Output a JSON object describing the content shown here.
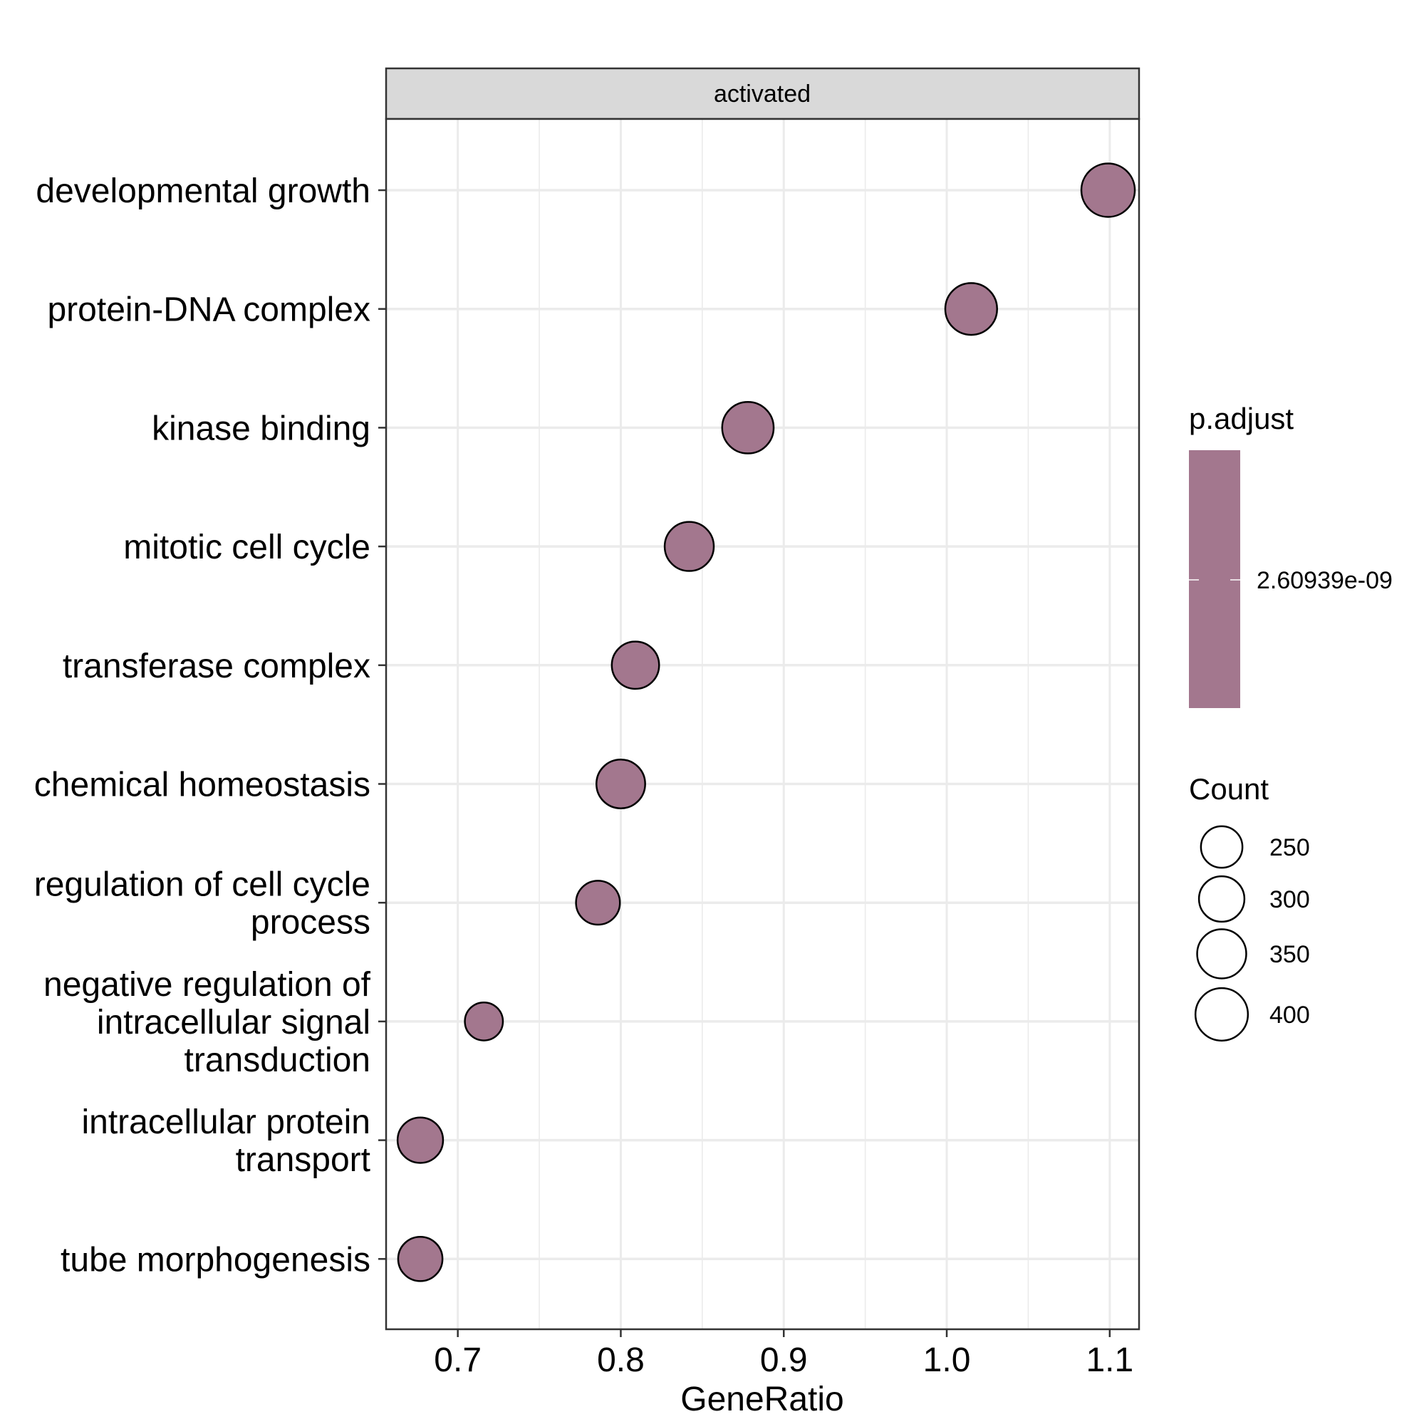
{
  "chart_data": {
    "type": "scatter",
    "facet_label": "activated",
    "xlabel": "GeneRatio",
    "ylabel": "",
    "xlim": [
      0.656,
      1.118
    ],
    "x_ticks": [
      "0.7",
      "0.8",
      "0.9",
      "1.0",
      "1.1"
    ],
    "x_tick_values": [
      0.7,
      0.8,
      0.9,
      1.0,
      1.1
    ],
    "grid": true,
    "categories": [
      [
        "developmental growth"
      ],
      [
        "protein-DNA complex"
      ],
      [
        "kinase binding"
      ],
      [
        "mitotic cell cycle"
      ],
      [
        "transferase complex"
      ],
      [
        "chemical homeostasis"
      ],
      [
        "regulation of cell cycle",
        "process"
      ],
      [
        "negative regulation of",
        "intracellular signal",
        "transduction"
      ],
      [
        "intracellular protein",
        "transport"
      ],
      [
        "tube morphogenesis"
      ]
    ],
    "points": [
      {
        "x": 1.099,
        "count": 415
      },
      {
        "x": 1.015,
        "count": 390
      },
      {
        "x": 0.878,
        "count": 385
      },
      {
        "x": 0.842,
        "count": 350
      },
      {
        "x": 0.809,
        "count": 325
      },
      {
        "x": 0.8,
        "count": 345
      },
      {
        "x": 0.786,
        "count": 280
      },
      {
        "x": 0.716,
        "count": 210
      },
      {
        "x": 0.677,
        "count": 300
      },
      {
        "x": 0.677,
        "count": 285
      }
    ],
    "fill_color": "#A3778E",
    "edge_color": "#000000",
    "legend": {
      "color": {
        "title": "p.adjust",
        "label": "2.60939e-09"
      },
      "size": {
        "title": "Count",
        "entries": [
          {
            "label": "250",
            "count": 250
          },
          {
            "label": "300",
            "count": 300
          },
          {
            "label": "350",
            "count": 350
          },
          {
            "label": "400",
            "count": 400
          }
        ]
      }
    }
  }
}
